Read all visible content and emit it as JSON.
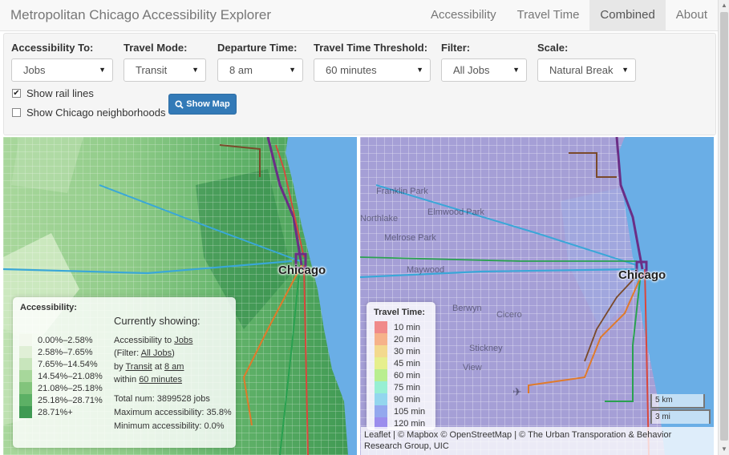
{
  "app": {
    "title": "Metropolitan Chicago Accessibility Explorer",
    "nav": [
      {
        "label": "Accessibility",
        "active": false
      },
      {
        "label": "Travel Time",
        "active": false
      },
      {
        "label": "Combined",
        "active": true
      },
      {
        "label": "About",
        "active": false
      }
    ]
  },
  "controls": {
    "accessibility_to": {
      "label": "Accessibility To:",
      "value": "Jobs"
    },
    "travel_mode": {
      "label": "Travel Mode:",
      "value": "Transit"
    },
    "departure_time": {
      "label": "Departure Time:",
      "value": "8 am"
    },
    "threshold": {
      "label": "Travel Time Threshold:",
      "value": "60 minutes"
    },
    "filter": {
      "label": "Filter:",
      "value": "All Jobs"
    },
    "scale": {
      "label": "Scale:",
      "value": "Natural Break"
    },
    "show_rail": {
      "label": "Show rail lines",
      "checked": true
    },
    "show_neighborhoods": {
      "label": "Show Chicago neighborhoods",
      "checked": false
    },
    "show_map": {
      "label": "Show Map",
      "icon": "search-icon"
    }
  },
  "left_map": {
    "city_label": "Chicago",
    "legend": {
      "title": "Accessibility:",
      "items": [
        {
          "label": "0.00%–2.58%",
          "color": "#f3f8ee"
        },
        {
          "label": "2.58%–7.65%",
          "color": "#e0efd6"
        },
        {
          "label": "7.65%–14.54%",
          "color": "#c8e5bc"
        },
        {
          "label": "14.54%–21.08%",
          "color": "#a7d79b"
        },
        {
          "label": "21.08%–25.18%",
          "color": "#82c47c"
        },
        {
          "label": "25.18%–28.71%",
          "color": "#5cb065"
        },
        {
          "label": "28.71%+",
          "color": "#3f9a53"
        }
      ]
    },
    "summary": {
      "heading": "Currently showing:",
      "l1_prefix": "Accessibility to ",
      "l1_link": "Jobs",
      "l2_prefix": "(Filter: ",
      "l2_link": "All Jobs",
      "l2_suffix": ")",
      "l3_by": "by ",
      "l3_mode": "Transit",
      "l3_at": " at ",
      "l3_time": "8 am",
      "l4_prefix": "within ",
      "l4_link": "60 minutes",
      "total": "Total num: 3899528 jobs",
      "max": "Maximum accessibility: 35.8%",
      "min": "Minimum accessibility: 0.0%"
    }
  },
  "right_map": {
    "city_label": "Chicago",
    "places": [
      "Franklin Park",
      "Elmwood Park",
      "Northlake",
      "Melrose Park",
      "Maywood",
      "Berwyn",
      "Cicero",
      "Stickney",
      "View"
    ],
    "legend": {
      "title": "Travel Time:",
      "items": [
        {
          "label": "10 min",
          "color": "#f08a8a"
        },
        {
          "label": "20 min",
          "color": "#f6b28a"
        },
        {
          "label": "30 min",
          "color": "#f3d98e"
        },
        {
          "label": "45 min",
          "color": "#e6ef8d"
        },
        {
          "label": "60 min",
          "color": "#b9ee90"
        },
        {
          "label": "75 min",
          "color": "#97efd3"
        },
        {
          "label": "90 min",
          "color": "#93d6ee"
        },
        {
          "label": "105 min",
          "color": "#93a8ee"
        },
        {
          "label": "120 min",
          "color": "#9b8ded"
        }
      ]
    },
    "scale": {
      "km": "5 km",
      "mi": "3 mi"
    },
    "attribution": "Leaflet | © Mapbox © OpenStreetMap | © The Urban Transporation & Behavior Research Group, UIC"
  },
  "colors": {
    "accent": "#337ab7",
    "water": "#6aaee6"
  }
}
